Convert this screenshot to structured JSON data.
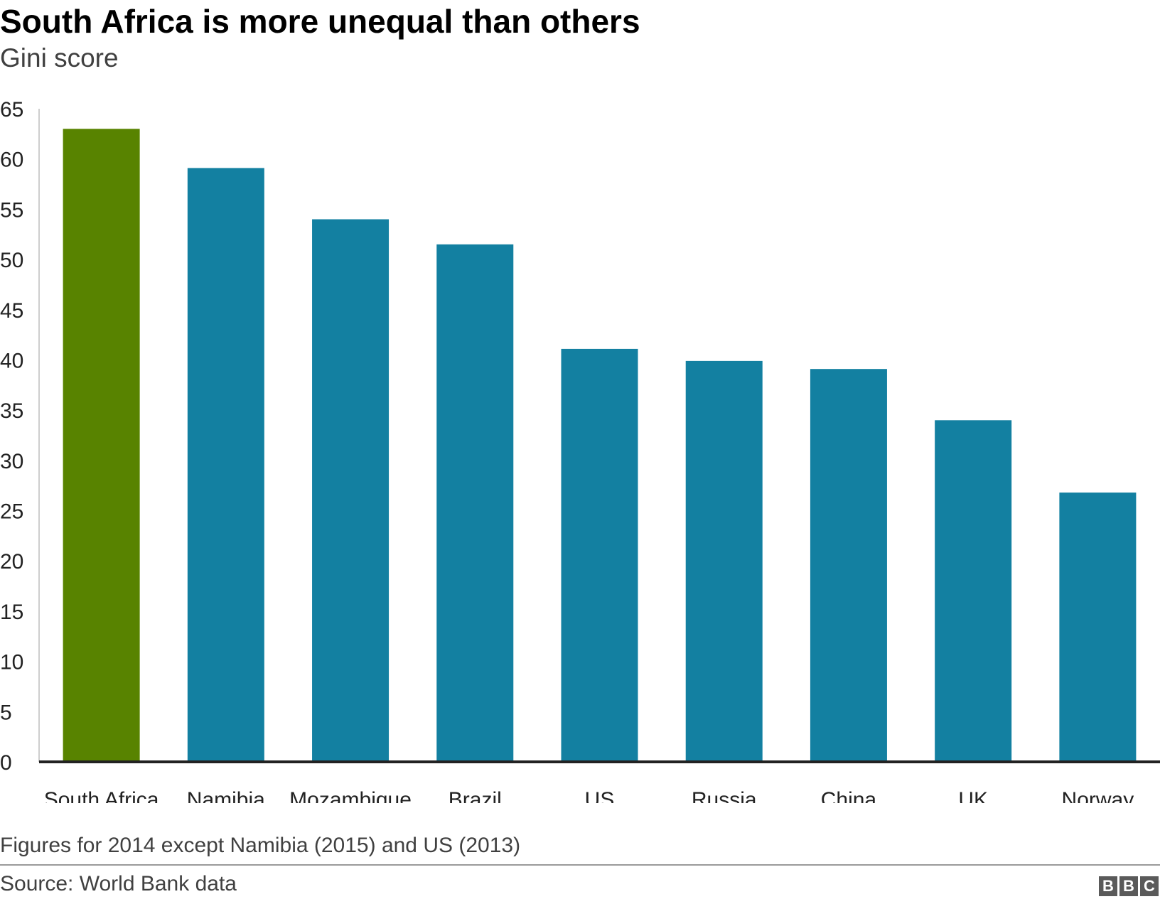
{
  "header": {
    "title": "South Africa is more unequal than others",
    "subtitle": "Gini score"
  },
  "footer": {
    "note": "Figures for 2014 except Namibia (2015) and US (2013)",
    "source": "Source: World Bank data",
    "logo_letters": [
      "B",
      "B",
      "C"
    ]
  },
  "colors": {
    "highlight": "#588300",
    "bar": "#1380A1",
    "axis": "#222222"
  },
  "chart_data": {
    "type": "bar",
    "title": "South Africa is more unequal than others",
    "subtitle": "Gini score",
    "categories": [
      "South Africa",
      "Namibia",
      "Mozambique",
      "Brazil",
      "US",
      "Russia",
      "China",
      "UK",
      "Norway"
    ],
    "values": [
      63.0,
      59.1,
      54.0,
      51.5,
      41.1,
      39.9,
      39.1,
      34.0,
      26.8
    ],
    "highlight_index": 0,
    "ylim": [
      0,
      65
    ],
    "yticks": [
      0,
      5,
      10,
      15,
      20,
      25,
      30,
      35,
      40,
      45,
      50,
      55,
      60,
      65
    ],
    "grid": false,
    "legend": "none"
  }
}
